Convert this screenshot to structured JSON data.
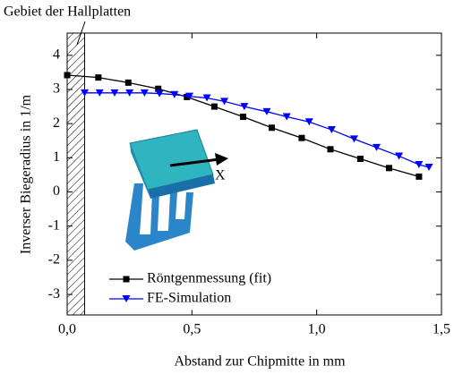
{
  "chart_data": {
    "type": "line",
    "annotations": [
      "Gebiet der Hallplatten",
      "X"
    ],
    "xlabel": "Abstand zur Chipmitte in mm",
    "ylabel": "Inverser Biegeradius in 1/m",
    "xlim": [
      0,
      1.5
    ],
    "ylim": [
      -3.6,
      4.65
    ],
    "xticks": [
      {
        "value": 0,
        "label": "0,0"
      },
      {
        "value": 0.5,
        "label": "0,5"
      },
      {
        "value": 1,
        "label": "1,0"
      },
      {
        "value": 1.5,
        "label": "1,5"
      }
    ],
    "yticks": [
      -3,
      -2,
      -1,
      0,
      1,
      2,
      3,
      4
    ],
    "shaded_xrange": [
      0,
      0.07
    ],
    "legend": "lower left",
    "series": [
      {
        "name": "Röntgenmessung (fit)",
        "color": "#000000",
        "marker": "square",
        "x": [
          0,
          0.125,
          0.245,
          0.365,
          0.48,
          0.59,
          0.705,
          0.82,
          0.94,
          1.055,
          1.175,
          1.29,
          1.41
        ],
        "values": [
          3.42,
          3.35,
          3.2,
          3.02,
          2.78,
          2.5,
          2.2,
          1.88,
          1.58,
          1.25,
          0.97,
          0.7,
          0.45
        ]
      },
      {
        "name": "FE-Simulation",
        "color": "#0000ff",
        "marker": "triangle",
        "x": [
          0.07,
          0.13,
          0.19,
          0.25,
          0.31,
          0.37,
          0.43,
          0.49,
          0.56,
          0.63,
          0.71,
          0.8,
          0.88,
          0.97,
          1.06,
          1.15,
          1.24,
          1.33,
          1.41,
          1.45
        ],
        "values": [
          2.9,
          2.9,
          2.9,
          2.9,
          2.9,
          2.88,
          2.85,
          2.8,
          2.75,
          2.65,
          2.5,
          2.35,
          2.2,
          2.05,
          1.82,
          1.55,
          1.3,
          1.05,
          0.8,
          0.72
        ]
      }
    ]
  }
}
